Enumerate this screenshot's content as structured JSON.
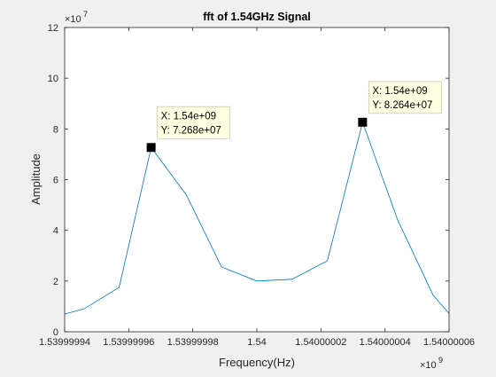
{
  "chart_data": {
    "type": "line",
    "title": "fft of 1.54GHz Signal",
    "xlabel": "Frequency(Hz)",
    "ylabel": "Amplitude",
    "x_exponent": "9",
    "y_exponent": "7",
    "xlim": [
      1539999940.0,
      1540000060.0
    ],
    "ylim": [
      0,
      120000000.0
    ],
    "grid": false,
    "x_ticks": [
      {
        "value": 1539999940.0,
        "label": "1.53999994"
      },
      {
        "value": 1539999960.0,
        "label": "1.53999996"
      },
      {
        "value": 1539999980.0,
        "label": "1.53999998"
      },
      {
        "value": 1540000000.0,
        "label": "1.54"
      },
      {
        "value": 1540000020.0,
        "label": "1.54000002"
      },
      {
        "value": 1540000040.0,
        "label": "1.54000004"
      },
      {
        "value": 1540000060.0,
        "label": "1.54000006"
      }
    ],
    "y_ticks": [
      {
        "value": 0,
        "label": "0"
      },
      {
        "value": 20000000.0,
        "label": "2"
      },
      {
        "value": 40000000.0,
        "label": "4"
      },
      {
        "value": 60000000.0,
        "label": "6"
      },
      {
        "value": 80000000.0,
        "label": "8"
      },
      {
        "value": 100000000.0,
        "label": "10"
      },
      {
        "value": 120000000.0,
        "label": "12"
      }
    ],
    "series": [
      {
        "color": "#0072bd",
        "x": [
          1539999940.0,
          1539999946.0,
          1539999957.0,
          1539999967.0,
          1539999978.0,
          1539999989.0,
          1540000000.0,
          1540000011.0,
          1540000022.0,
          1540000033.0,
          1540000044.0,
          1540000055.0,
          1540000060.0
        ],
        "y": [
          7000000.0,
          9000000.0,
          17500000.0,
          72680000.0,
          54000000.0,
          25500000.0,
          20000000.0,
          20700000.0,
          28000000.0,
          82640000.0,
          44000000.0,
          14500000.0,
          7200000.0
        ]
      }
    ],
    "datatips": [
      {
        "x": 1539999967.0,
        "y": 72680000.0,
        "x_text": "X: 1.54e+09",
        "y_text": "Y: 7.268e+07"
      },
      {
        "x": 1540000033.0,
        "y": 82640000.0,
        "x_text": "X: 1.54e+09",
        "y_text": "Y: 8.264e+07"
      }
    ]
  }
}
